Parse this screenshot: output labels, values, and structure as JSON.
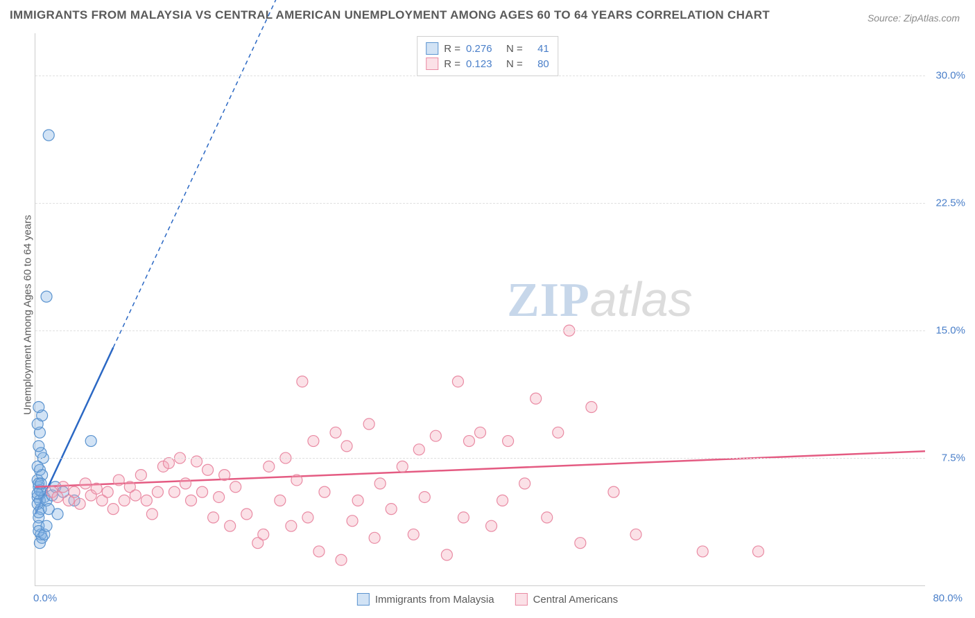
{
  "title": "IMMIGRANTS FROM MALAYSIA VS CENTRAL AMERICAN UNEMPLOYMENT AMONG AGES 60 TO 64 YEARS CORRELATION CHART",
  "source_label": "Source:",
  "source_name": "ZipAtlas.com",
  "y_axis_label": "Unemployment Among Ages 60 to 64 years",
  "watermark_zip": "ZIP",
  "watermark_atlas": "atlas",
  "chart": {
    "type": "scatter",
    "xlim": [
      0,
      80
    ],
    "ylim": [
      0,
      32.5
    ],
    "y_ticks": [
      7.5,
      15.0,
      22.5,
      30.0
    ],
    "y_tick_labels": [
      "7.5%",
      "15.0%",
      "22.5%",
      "30.0%"
    ],
    "x_tick_min_label": "0.0%",
    "x_tick_max_label": "80.0%",
    "grid_color": "#e0e0e0",
    "tick_color": "#4a7fc9",
    "axis_color": "#cccccc",
    "background_color": "#ffffff",
    "series": [
      {
        "id": "malaysia",
        "label": "Immigrants from Malaysia",
        "R": "0.276",
        "N": "41",
        "marker_color": "#7fb0e3",
        "marker_fill": "rgba(127,176,227,0.35)",
        "marker_stroke": "#5a93cf",
        "marker_radius": 8,
        "line_color": "#2b68c4",
        "line_width": 2.5,
        "regression_solid": [
          [
            0,
            4.2
          ],
          [
            7,
            14.0
          ]
        ],
        "regression_dashed": [
          [
            7,
            14.0
          ],
          [
            22,
            35.0
          ]
        ],
        "points": [
          [
            0.2,
            5.2
          ],
          [
            0.3,
            5.8
          ],
          [
            0.4,
            5.0
          ],
          [
            0.2,
            6.2
          ],
          [
            0.5,
            4.5
          ],
          [
            0.3,
            4.0
          ],
          [
            0.6,
            5.5
          ],
          [
            0.4,
            6.8
          ],
          [
            0.7,
            7.5
          ],
          [
            0.8,
            5.2
          ],
          [
            0.3,
            3.5
          ],
          [
            0.5,
            3.0
          ],
          [
            0.2,
            4.8
          ],
          [
            0.6,
            6.5
          ],
          [
            0.4,
            5.6
          ],
          [
            0.3,
            6.0
          ],
          [
            0.2,
            7.0
          ],
          [
            0.5,
            7.8
          ],
          [
            0.3,
            8.2
          ],
          [
            0.4,
            9.0
          ],
          [
            0.2,
            9.5
          ],
          [
            0.6,
            10.0
          ],
          [
            0.3,
            10.5
          ],
          [
            1.0,
            5.0
          ],
          [
            1.2,
            4.5
          ],
          [
            1.5,
            5.3
          ],
          [
            1.8,
            5.8
          ],
          [
            2.0,
            4.2
          ],
          [
            2.5,
            5.5
          ],
          [
            0.4,
            2.5
          ],
          [
            0.6,
            2.8
          ],
          [
            0.3,
            3.2
          ],
          [
            0.8,
            3.0
          ],
          [
            1.0,
            3.5
          ],
          [
            3.5,
            5.0
          ],
          [
            5.0,
            8.5
          ],
          [
            1.0,
            17.0
          ],
          [
            1.2,
            26.5
          ],
          [
            0.2,
            5.4
          ],
          [
            0.5,
            6.0
          ],
          [
            0.3,
            4.3
          ]
        ]
      },
      {
        "id": "central",
        "label": "Central Americans",
        "R": "0.123",
        "N": "80",
        "marker_color": "#f4a8ba",
        "marker_fill": "rgba(244,168,186,0.35)",
        "marker_stroke": "#e98aa3",
        "marker_radius": 8,
        "line_color": "#e45b82",
        "line_width": 2.5,
        "regression_solid": [
          [
            0,
            5.8
          ],
          [
            80,
            7.9
          ]
        ],
        "points": [
          [
            1.5,
            5.5
          ],
          [
            2.0,
            5.2
          ],
          [
            2.5,
            5.8
          ],
          [
            3.0,
            5.0
          ],
          [
            3.5,
            5.5
          ],
          [
            4.0,
            4.8
          ],
          [
            4.5,
            6.0
          ],
          [
            5.0,
            5.3
          ],
          [
            5.5,
            5.7
          ],
          [
            6.0,
            5.0
          ],
          [
            6.5,
            5.5
          ],
          [
            7.0,
            4.5
          ],
          [
            7.5,
            6.2
          ],
          [
            8.0,
            5.0
          ],
          [
            8.5,
            5.8
          ],
          [
            9.0,
            5.3
          ],
          [
            9.5,
            6.5
          ],
          [
            10.0,
            5.0
          ],
          [
            10.5,
            4.2
          ],
          [
            11.0,
            5.5
          ],
          [
            11.5,
            7.0
          ],
          [
            12.0,
            7.2
          ],
          [
            12.5,
            5.5
          ],
          [
            13.0,
            7.5
          ],
          [
            13.5,
            6.0
          ],
          [
            14.0,
            5.0
          ],
          [
            14.5,
            7.3
          ],
          [
            15.0,
            5.5
          ],
          [
            15.5,
            6.8
          ],
          [
            16.0,
            4.0
          ],
          [
            16.5,
            5.2
          ],
          [
            17.0,
            6.5
          ],
          [
            17.5,
            3.5
          ],
          [
            18.0,
            5.8
          ],
          [
            19.0,
            4.2
          ],
          [
            20.0,
            2.5
          ],
          [
            20.5,
            3.0
          ],
          [
            21.0,
            7.0
          ],
          [
            22.0,
            5.0
          ],
          [
            22.5,
            7.5
          ],
          [
            23.0,
            3.5
          ],
          [
            23.5,
            6.2
          ],
          [
            24.0,
            12.0
          ],
          [
            24.5,
            4.0
          ],
          [
            25.0,
            8.5
          ],
          [
            25.5,
            2.0
          ],
          [
            26.0,
            5.5
          ],
          [
            27.0,
            9.0
          ],
          [
            27.5,
            1.5
          ],
          [
            28.0,
            8.2
          ],
          [
            28.5,
            3.8
          ],
          [
            29.0,
            5.0
          ],
          [
            30.0,
            9.5
          ],
          [
            30.5,
            2.8
          ],
          [
            31.0,
            6.0
          ],
          [
            32.0,
            4.5
          ],
          [
            33.0,
            7.0
          ],
          [
            34.0,
            3.0
          ],
          [
            34.5,
            8.0
          ],
          [
            35.0,
            5.2
          ],
          [
            36.0,
            8.8
          ],
          [
            37.0,
            1.8
          ],
          [
            38.0,
            12.0
          ],
          [
            38.5,
            4.0
          ],
          [
            39.0,
            8.5
          ],
          [
            40.0,
            9.0
          ],
          [
            41.0,
            3.5
          ],
          [
            42.0,
            5.0
          ],
          [
            42.5,
            8.5
          ],
          [
            44.0,
            6.0
          ],
          [
            45.0,
            11.0
          ],
          [
            46.0,
            4.0
          ],
          [
            47.0,
            9.0
          ],
          [
            48.0,
            15.0
          ],
          [
            49.0,
            2.5
          ],
          [
            50.0,
            10.5
          ],
          [
            52.0,
            5.5
          ],
          [
            54.0,
            3.0
          ],
          [
            60.0,
            2.0
          ],
          [
            65.0,
            2.0
          ]
        ]
      }
    ]
  },
  "legend_top": {
    "R_label": "R =",
    "N_label": "N ="
  },
  "title_fontsize": 17,
  "label_fontsize": 15
}
